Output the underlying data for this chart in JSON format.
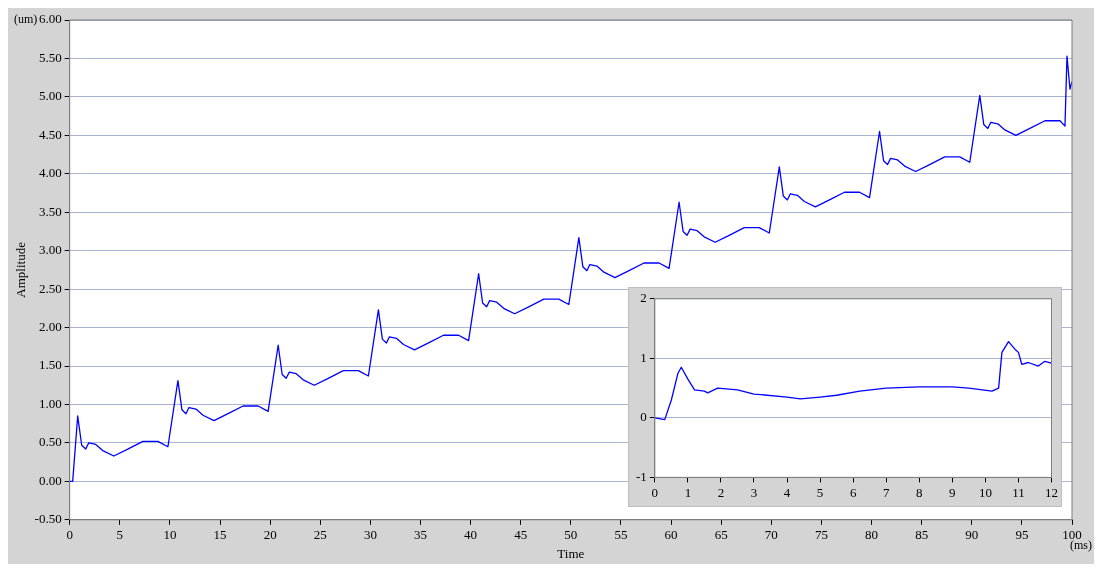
{
  "chart_data": [
    {
      "type": "line",
      "xlabel": "Time",
      "ylabel": "Amplitude",
      "annotations": [
        "(um)",
        "(ms)"
      ],
      "xlim": [
        0,
        100
      ],
      "xticks": [
        0,
        5,
        10,
        15,
        20,
        25,
        30,
        35,
        40,
        45,
        50,
        55,
        60,
        65,
        70,
        75,
        80,
        85,
        90,
        95,
        100
      ],
      "ylim": [
        -0.5,
        6
      ],
      "yticks": [
        {
          "value": -0.5,
          "label": "-0.50"
        },
        {
          "value": 0,
          "label": "0.00"
        },
        {
          "value": 0.5,
          "label": "0.50"
        },
        {
          "value": 1,
          "label": "1.00"
        },
        {
          "value": 1.5,
          "label": "1.50"
        },
        {
          "value": 2,
          "label": "2.00"
        },
        {
          "value": 2.5,
          "label": "2.50"
        },
        {
          "value": 3,
          "label": "3.00"
        },
        {
          "value": 3.5,
          "label": "3.50"
        },
        {
          "value": 4,
          "label": "4.00"
        },
        {
          "value": 4.5,
          "label": "4.50"
        },
        {
          "value": 5,
          "label": "5.00"
        },
        {
          "value": 5.5,
          "label": "5.50"
        },
        {
          "value": 6,
          "label": "6.00"
        }
      ],
      "grid": "y",
      "legend": false,
      "marker": "none",
      "line_style": "solid",
      "series": [
        {
          "color": "#0000ff",
          "x": [
            0,
            0.3,
            0.8,
            1.2,
            1.6,
            1.9,
            2.6,
            3.3,
            4.4,
            5.8,
            7.3,
            8.8,
            9.8,
            10.8,
            11.2,
            11.6,
            11.9,
            12.6,
            13.3,
            14.4,
            15.8,
            17.3,
            18.8,
            19.8,
            20.8,
            21.2,
            21.6,
            21.9,
            22.6,
            23.3,
            24.4,
            25.8,
            27.3,
            28.8,
            29.8,
            30.8,
            31.2,
            31.6,
            31.9,
            32.6,
            33.3,
            34.4,
            35.8,
            37.3,
            38.8,
            39.8,
            40.8,
            41.2,
            41.6,
            41.9,
            42.6,
            43.3,
            44.4,
            45.8,
            47.3,
            48.8,
            49.8,
            50.8,
            51.2,
            51.6,
            51.9,
            52.6,
            53.3,
            54.4,
            55.8,
            57.3,
            58.8,
            59.8,
            60.8,
            61.2,
            61.6,
            61.9,
            62.6,
            63.3,
            64.4,
            65.8,
            67.3,
            68.8,
            69.8,
            70.8,
            71.2,
            71.6,
            71.9,
            72.6,
            73.3,
            74.4,
            75.8,
            77.3,
            78.8,
            79.8,
            80.8,
            81.2,
            81.6,
            81.9,
            82.6,
            83.3,
            84.4,
            85.8,
            87.3,
            88.8,
            89.8,
            90.8,
            91.2,
            91.6,
            91.9,
            92.6,
            93.3,
            94.4,
            95.8,
            97.3,
            98.8,
            99.3,
            99.5,
            99.8,
            100
          ],
          "values": [
            0,
            0,
            0.85,
            0.47,
            0.42,
            0.5,
            0.48,
            0.4,
            0.33,
            0.42,
            0.52,
            0.52,
            0.45,
            1.31,
            0.93,
            0.88,
            0.96,
            0.94,
            0.86,
            0.79,
            0.88,
            0.98,
            0.98,
            0.91,
            1.77,
            1.39,
            1.34,
            1.42,
            1.4,
            1.32,
            1.25,
            1.34,
            1.44,
            1.44,
            1.37,
            2.23,
            1.85,
            1.8,
            1.88,
            1.86,
            1.78,
            1.71,
            1.8,
            1.9,
            1.9,
            1.83,
            2.7,
            2.32,
            2.27,
            2.35,
            2.33,
            2.25,
            2.18,
            2.27,
            2.37,
            2.37,
            2.3,
            3.17,
            2.79,
            2.74,
            2.82,
            2.8,
            2.72,
            2.65,
            2.74,
            2.84,
            2.84,
            2.77,
            3.63,
            3.25,
            3.2,
            3.28,
            3.26,
            3.18,
            3.11,
            3.2,
            3.3,
            3.3,
            3.23,
            4.09,
            3.71,
            3.66,
            3.74,
            3.72,
            3.64,
            3.57,
            3.66,
            3.76,
            3.76,
            3.69,
            4.55,
            4.17,
            4.12,
            4.2,
            4.18,
            4.1,
            4.03,
            4.12,
            4.22,
            4.22,
            4.15,
            5.02,
            4.64,
            4.59,
            4.67,
            4.65,
            4.57,
            4.5,
            4.59,
            4.69,
            4.69,
            4.62,
            5.53,
            5.1,
            5.2
          ]
        }
      ]
    },
    {
      "type": "line",
      "xlim": [
        0,
        12
      ],
      "xticks": [
        0,
        1,
        2,
        3,
        4,
        5,
        6,
        7,
        8,
        9,
        10,
        11,
        12
      ],
      "ylim": [
        -1,
        2
      ],
      "yticks": [
        -1,
        0,
        1,
        2
      ],
      "grid": "y",
      "legend": false,
      "marker": "none",
      "line_style": "solid",
      "series": [
        {
          "color": "#0000ff",
          "x": [
            0,
            0.3,
            0.5,
            0.7,
            0.8,
            1,
            1.2,
            1.5,
            1.6,
            1.9,
            2.5,
            3,
            4,
            4.4,
            5,
            5.5,
            6.2,
            7,
            8,
            9,
            9.5,
            10.2,
            10.4,
            10.5,
            10.7,
            10.9,
            11,
            11.1,
            11.3,
            11.6,
            11.8,
            12
          ],
          "values": [
            0,
            -0.03,
            0.3,
            0.75,
            0.85,
            0.65,
            0.47,
            0.45,
            0.42,
            0.5,
            0.47,
            0.4,
            0.35,
            0.32,
            0.35,
            0.38,
            0.45,
            0.5,
            0.52,
            0.52,
            0.5,
            0.45,
            0.5,
            1.1,
            1.28,
            1.15,
            1.1,
            0.9,
            0.93,
            0.87,
            0.95,
            0.92
          ]
        }
      ]
    }
  ]
}
